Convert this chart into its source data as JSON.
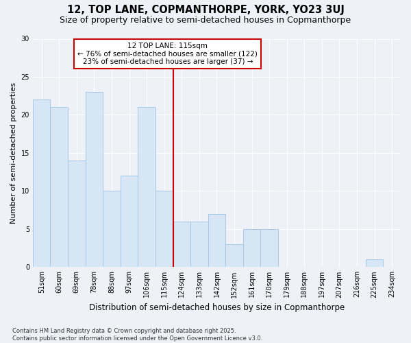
{
  "title": "12, TOP LANE, COPMANTHORPE, YORK, YO23 3UJ",
  "subtitle": "Size of property relative to semi-detached houses in Copmanthorpe",
  "xlabel": "Distribution of semi-detached houses by size in Copmanthorpe",
  "ylabel": "Number of semi-detached properties",
  "categories": [
    "51sqm",
    "60sqm",
    "69sqm",
    "78sqm",
    "88sqm",
    "97sqm",
    "106sqm",
    "115sqm",
    "124sqm",
    "133sqm",
    "142sqm",
    "152sqm",
    "161sqm",
    "170sqm",
    "179sqm",
    "188sqm",
    "197sqm",
    "207sqm",
    "216sqm",
    "225sqm",
    "234sqm"
  ],
  "values": [
    22,
    21,
    14,
    23,
    10,
    12,
    21,
    10,
    6,
    6,
    7,
    3,
    5,
    5,
    0,
    0,
    0,
    0,
    0,
    1,
    0
  ],
  "bar_color": "#d6e6f5",
  "bar_edge_color": "#a8c8e8",
  "vline_color": "#cc0000",
  "vline_index": 7.5,
  "annotation_text": "12 TOP LANE: 115sqm\n← 76% of semi-detached houses are smaller (122)\n23% of semi-detached houses are larger (37) →",
  "annotation_box_facecolor": "#ffffff",
  "annotation_box_edgecolor": "#cc0000",
  "ylim": [
    0,
    30
  ],
  "yticks": [
    0,
    5,
    10,
    15,
    20,
    25,
    30
  ],
  "background_color": "#eef2f8",
  "grid_color": "#ffffff",
  "footer": "Contains HM Land Registry data © Crown copyright and database right 2025.\nContains public sector information licensed under the Open Government Licence v3.0.",
  "title_fontsize": 10.5,
  "subtitle_fontsize": 9,
  "xlabel_fontsize": 8.5,
  "ylabel_fontsize": 8,
  "tick_fontsize": 7,
  "footer_fontsize": 6,
  "ann_fontsize": 7.5
}
